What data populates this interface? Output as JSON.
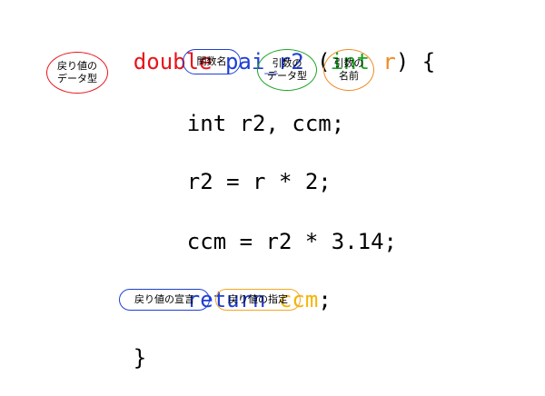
{
  "colors": {
    "return_type": "#e8141b",
    "func_name": "#1f3ed6",
    "param_type": "#1aa524",
    "param_name": "#f08a24",
    "keyword": "#1f3ed6",
    "return_value": "#f5b40a",
    "plain": "#000000"
  },
  "code": {
    "sig_return_type": "double",
    "sig_func_name": "pai_r2",
    "sig_open_paren": "(",
    "sig_param_type": "int",
    "sig_param_name": "r",
    "sig_close_brace": ") {",
    "line_decl": "int r2, ccm;",
    "line_assign1": "r2 = r * 2;",
    "line_assign2": "ccm = r2 * 3.14;",
    "ret_keyword": "return",
    "ret_value": "ccm",
    "ret_semicolon": ";",
    "closing_brace": "}"
  },
  "annotations": {
    "return_type": "戻り値の\nデータ型",
    "func_name": "関数名",
    "param_type": "引数の\nデータ型",
    "param_name": "引数の\n名前",
    "return_decl": "戻り値の宣言",
    "return_spec": "戻り値の指定"
  },
  "annotation_colors": {
    "return_type": "#e8141b",
    "func_name": "#1f3ed6",
    "param_type": "#1aa524",
    "param_name": "#f08a24",
    "return_decl": "#1f3ed6",
    "return_spec": "#f5a623"
  }
}
